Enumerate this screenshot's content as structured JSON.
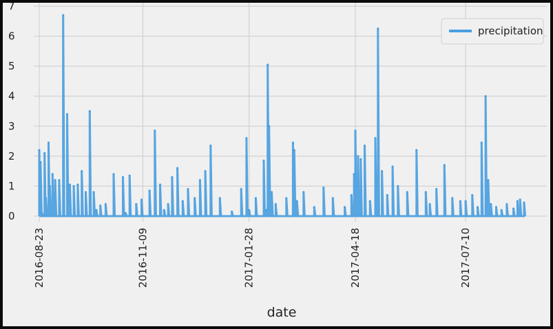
{
  "chart_data": {
    "type": "line",
    "title": "",
    "xlabel": "date",
    "ylabel": "",
    "grid": true,
    "legend_position": "top-right",
    "x_range": [
      "2016-08-23",
      "2017-08-23"
    ],
    "ylim": [
      0,
      7
    ],
    "y_ticks": [
      0,
      1,
      2,
      3,
      4,
      5,
      6,
      7
    ],
    "x_ticks": [
      "2016-08-23",
      "2016-11-09",
      "2017-01-28",
      "2017-04-18",
      "2017-07-10"
    ],
    "series": [
      {
        "name": "precipitation",
        "color": "#4a9ee0",
        "x": [
          "2016-08-23",
          "2016-08-24",
          "2016-08-25",
          "2016-08-27",
          "2016-08-28",
          "2016-08-30",
          "2016-08-31",
          "2016-09-02",
          "2016-09-04",
          "2016-09-07",
          "2016-09-10",
          "2016-09-13",
          "2016-09-14",
          "2016-09-15",
          "2016-09-18",
          "2016-09-21",
          "2016-09-24",
          "2016-09-27",
          "2016-09-30",
          "2016-10-03",
          "2016-10-05",
          "2016-10-08",
          "2016-10-12",
          "2016-10-18",
          "2016-10-25",
          "2016-10-27",
          "2016-10-30",
          "2016-11-04",
          "2016-11-08",
          "2016-11-14",
          "2016-11-18",
          "2016-11-22",
          "2016-11-25",
          "2016-11-28",
          "2016-12-01",
          "2016-12-05",
          "2016-12-09",
          "2016-12-13",
          "2016-12-18",
          "2016-12-22",
          "2016-12-26",
          "2016-12-30",
          "2017-01-06",
          "2017-01-15",
          "2017-01-22",
          "2017-01-26",
          "2017-01-28",
          "2017-02-02",
          "2017-02-08",
          "2017-02-10",
          "2017-02-11",
          "2017-02-12",
          "2017-02-14",
          "2017-02-17",
          "2017-02-25",
          "2017-03-02",
          "2017-03-03",
          "2017-03-05",
          "2017-03-10",
          "2017-03-18",
          "2017-03-25",
          "2017-04-01",
          "2017-04-10",
          "2017-04-15",
          "2017-04-17",
          "2017-04-18",
          "2017-04-20",
          "2017-04-22",
          "2017-04-25",
          "2017-04-29",
          "2017-05-03",
          "2017-05-05",
          "2017-05-08",
          "2017-05-12",
          "2017-05-16",
          "2017-05-20",
          "2017-05-27",
          "2017-06-03",
          "2017-06-10",
          "2017-06-13",
          "2017-06-18",
          "2017-06-24",
          "2017-06-30",
          "2017-07-06",
          "2017-07-10",
          "2017-07-15",
          "2017-07-19",
          "2017-07-22",
          "2017-07-25",
          "2017-07-27",
          "2017-07-29",
          "2017-08-02",
          "2017-08-06",
          "2017-08-10",
          "2017-08-15",
          "2017-08-18",
          "2017-08-20",
          "2017-08-23"
        ],
        "values": [
          2.2,
          1.8,
          0.1,
          2.1,
          0.6,
          2.45,
          1.0,
          1.4,
          1.2,
          1.2,
          6.7,
          3.4,
          0.5,
          1.05,
          1.0,
          1.05,
          1.5,
          0.8,
          3.5,
          0.8,
          0.2,
          0.35,
          0.4,
          1.4,
          1.3,
          0.1,
          1.35,
          0.4,
          0.55,
          0.85,
          2.85,
          1.05,
          0.2,
          0.4,
          1.3,
          1.6,
          0.5,
          0.9,
          0.6,
          1.2,
          1.5,
          2.35,
          0.6,
          0.15,
          0.9,
          2.6,
          0.2,
          0.6,
          1.85,
          0.2,
          5.05,
          3.0,
          0.8,
          0.4,
          0.6,
          2.45,
          2.2,
          0.5,
          0.8,
          0.3,
          0.95,
          0.6,
          0.3,
          0.7,
          1.4,
          2.85,
          2.0,
          1.9,
          2.35,
          0.5,
          2.6,
          6.25,
          1.5,
          0.7,
          1.65,
          1.0,
          0.8,
          2.2,
          0.8,
          0.4,
          0.9,
          1.7,
          0.6,
          0.5,
          0.5,
          0.7,
          0.3,
          2.45,
          4.0,
          1.2,
          0.4,
          0.3,
          0.2,
          0.4,
          0.25,
          0.5,
          0.55,
          0.45
        ]
      }
    ]
  }
}
